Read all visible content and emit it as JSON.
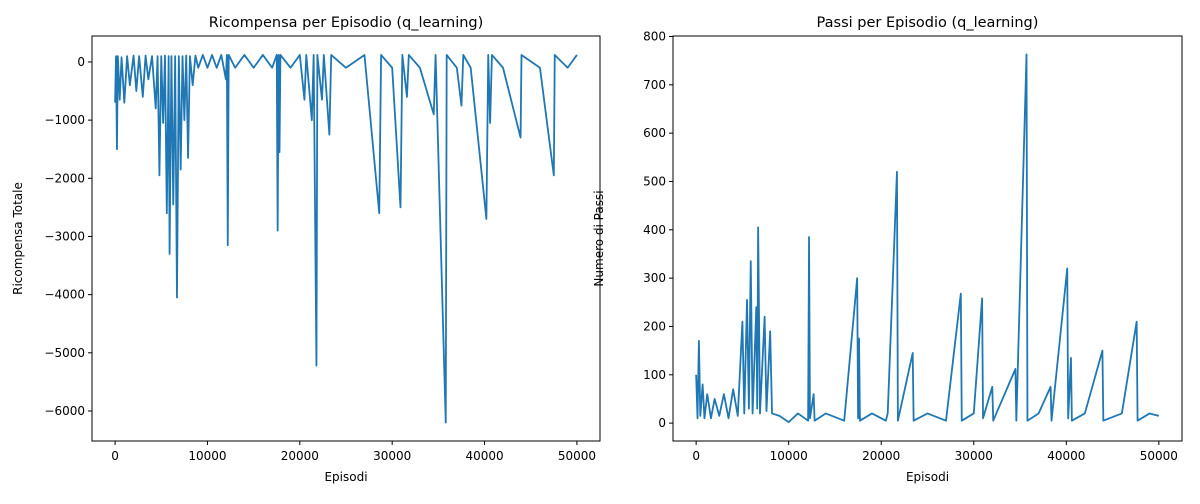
{
  "chart_data": [
    {
      "type": "line",
      "title": "Ricompensa per Episodio (q_learning)",
      "x_label": "Episodi",
      "y_label": "Ricompensa Totale",
      "xlim": [
        -2500,
        52500
      ],
      "ylim": [
        -6516,
        446
      ],
      "xticks": [
        0,
        10000,
        20000,
        30000,
        40000,
        50000
      ],
      "yticks": [
        {
          "value": -6000,
          "label": "−6000"
        },
        {
          "value": -5000,
          "label": "−5000"
        },
        {
          "value": -4000,
          "label": "−4000"
        },
        {
          "value": -3000,
          "label": "−3000"
        },
        {
          "value": -2000,
          "label": "−2000"
        },
        {
          "value": -1000,
          "label": "−1000"
        },
        0
      ],
      "series": [
        {
          "color": "#1f77b4",
          "x": [
            0,
            100,
            200,
            300,
            500,
            700,
            1000,
            1300,
            1600,
            2000,
            2300,
            2600,
            3000,
            3300,
            3600,
            4000,
            4400,
            4600,
            4800,
            5000,
            5200,
            5400,
            5600,
            5800,
            5900,
            6100,
            6300,
            6500,
            6700,
            6900,
            7100,
            7300,
            7500,
            7700,
            7900,
            8100,
            8400,
            8700,
            9000,
            9500,
            10000,
            10500,
            11000,
            11500,
            12000,
            12100,
            12200,
            12300,
            13000,
            14000,
            15000,
            16000,
            17000,
            17500,
            17600,
            17700,
            17800,
            17900,
            19000,
            20000,
            20500,
            20700,
            21300,
            21500,
            21800,
            21900,
            22400,
            22600,
            23200,
            23400,
            25000,
            27000,
            28600,
            28800,
            30000,
            30900,
            31100,
            31600,
            31800,
            33000,
            34500,
            34700,
            35800,
            35900,
            37000,
            37500,
            37700,
            38500,
            40200,
            40400,
            40600,
            40800,
            42000,
            43900,
            44000,
            46000,
            47500,
            47600,
            49000,
            50000
          ],
          "values": [
            -700,
            100,
            -1500,
            100,
            -650,
            80,
            -700,
            100,
            -400,
            110,
            -500,
            100,
            -600,
            110,
            -300,
            100,
            -800,
            100,
            -1950,
            100,
            -1050,
            110,
            -2600,
            100,
            -3300,
            100,
            -2450,
            100,
            -4050,
            100,
            -1850,
            100,
            -1000,
            110,
            -1650,
            100,
            -400,
            110,
            -100,
            120,
            -100,
            120,
            -100,
            120,
            -300,
            120,
            -3150,
            120,
            -100,
            120,
            -100,
            120,
            -100,
            120,
            -2900,
            120,
            -1550,
            120,
            -100,
            120,
            -650,
            120,
            -1000,
            120,
            -5220,
            120,
            -650,
            120,
            -1250,
            120,
            -100,
            120,
            -2600,
            120,
            -100,
            -2500,
            120,
            -600,
            120,
            -100,
            -900,
            120,
            -6200,
            120,
            -100,
            -750,
            120,
            -100,
            -2700,
            120,
            -1050,
            120,
            -100,
            -1300,
            120,
            -100,
            -1950,
            120,
            -100,
            120
          ]
        }
      ]
    },
    {
      "type": "line",
      "title": "Passi per Episodio (q_learning)",
      "x_label": "Episodi",
      "y_label": "Numero di Passi",
      "xlim": [
        -2500,
        52500
      ],
      "ylim": [
        -37,
        801
      ],
      "xticks": [
        0,
        10000,
        20000,
        30000,
        40000,
        50000
      ],
      "yticks": [
        0,
        100,
        200,
        300,
        400,
        500,
        600,
        700,
        800
      ],
      "series": [
        {
          "color": "#1f77b4",
          "x": [
            0,
            150,
            300,
            450,
            700,
            900,
            1200,
            1600,
            2000,
            2500,
            3000,
            3500,
            4000,
            4500,
            5000,
            5200,
            5500,
            5700,
            5900,
            6100,
            6500,
            6600,
            6700,
            6900,
            7400,
            7600,
            8000,
            8200,
            9000,
            10000,
            11000,
            12100,
            12200,
            12300,
            12700,
            12800,
            14000,
            16000,
            17400,
            17500,
            17600,
            17700,
            19000,
            20500,
            20700,
            21700,
            21800,
            23400,
            23500,
            25000,
            27000,
            28600,
            28700,
            30000,
            30900,
            31000,
            32000,
            32100,
            34500,
            34600,
            35700,
            35800,
            37000,
            38300,
            38400,
            40100,
            40200,
            40500,
            40600,
            42000,
            43900,
            44000,
            46000,
            47600,
            47700,
            49000,
            50000
          ],
          "values": [
            100,
            10,
            170,
            15,
            80,
            10,
            60,
            10,
            50,
            15,
            60,
            10,
            70,
            15,
            210,
            20,
            255,
            30,
            335,
            20,
            240,
            30,
            405,
            20,
            220,
            25,
            190,
            20,
            15,
            2,
            20,
            5,
            385,
            10,
            60,
            5,
            20,
            5,
            300,
            10,
            175,
            5,
            20,
            5,
            20,
            520,
            5,
            145,
            5,
            20,
            5,
            268,
            5,
            20,
            258,
            10,
            75,
            5,
            112,
            5,
            763,
            5,
            20,
            75,
            5,
            320,
            10,
            135,
            5,
            20,
            150,
            5,
            20,
            210,
            5,
            20,
            15
          ]
        }
      ]
    }
  ]
}
